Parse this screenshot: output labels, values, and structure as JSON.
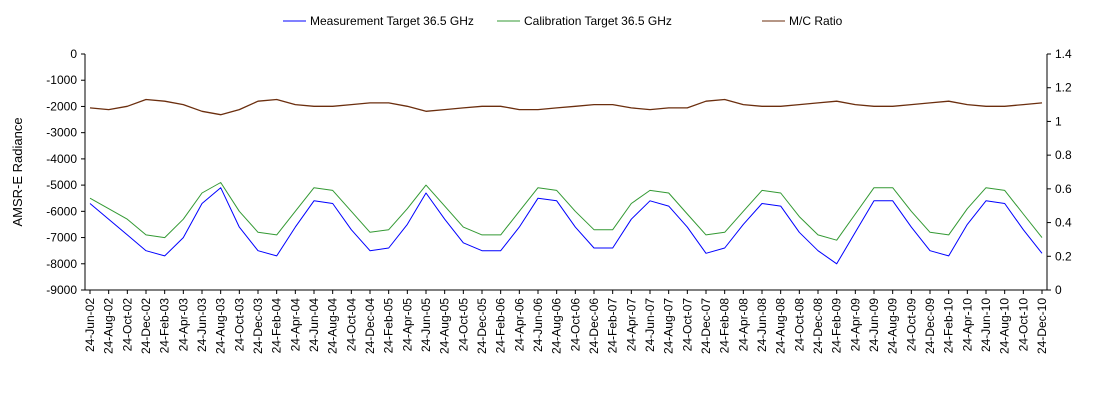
{
  "chart_data": {
    "type": "line",
    "title": "",
    "xlabel": "",
    "ylabel": "AMSR-E Radiance",
    "y2label": "",
    "ylim": [
      -9000,
      0
    ],
    "y2lim": [
      0,
      1.4
    ],
    "y_ticks": [
      0,
      -1000,
      -2000,
      -3000,
      -4000,
      -5000,
      -6000,
      -7000,
      -8000,
      -9000
    ],
    "y2_ticks": [
      1.4,
      1.2,
      1,
      0.8,
      0.6,
      0.4,
      0.2,
      0
    ],
    "x_ticks": [
      "24-Jun-02",
      "24-Aug-02",
      "24-Oct-02",
      "24-Dec-02",
      "24-Feb-03",
      "24-Apr-03",
      "24-Jun-03",
      "24-Aug-03",
      "24-Oct-03",
      "24-Dec-03",
      "24-Feb-04",
      "24-Apr-04",
      "24-Jun-04",
      "24-Aug-04",
      "24-Oct-04",
      "24-Dec-04",
      "24-Feb-05",
      "24-Apr-05",
      "24-Jun-05",
      "24-Aug-05",
      "24-Oct-05",
      "24-Dec-05",
      "24-Feb-06",
      "24-Apr-06",
      "24-Jun-06",
      "24-Aug-06",
      "24-Oct-06",
      "24-Dec-06",
      "24-Feb-07",
      "24-Apr-07",
      "24-Jun-07",
      "24-Aug-07",
      "24-Oct-07",
      "24-Dec-07",
      "24-Feb-08",
      "24-Apr-08",
      "24-Jun-08",
      "24-Aug-08",
      "24-Oct-08",
      "24-Dec-08",
      "24-Feb-09",
      "24-Apr-09",
      "24-Jun-09",
      "24-Aug-09",
      "24-Oct-09",
      "24-Dec-09",
      "24-Feb-10",
      "24-Apr-10",
      "24-Jun-10",
      "24-Aug-10",
      "24-Oct-10",
      "24-Dec-10"
    ],
    "grid": false,
    "legend": "top",
    "series": [
      {
        "name": "Measurement Target 36.5 GHz",
        "color": "#0000ff",
        "axis": "left",
        "x": [
          "24-Jun-02",
          "24-Aug-02",
          "24-Oct-02",
          "24-Dec-02",
          "24-Feb-03",
          "24-Apr-03",
          "24-Jun-03",
          "24-Aug-03",
          "24-Oct-03",
          "24-Dec-03",
          "24-Feb-04",
          "24-Apr-04",
          "24-Jun-04",
          "24-Aug-04",
          "24-Oct-04",
          "24-Dec-04",
          "24-Feb-05",
          "24-Apr-05",
          "24-Jun-05",
          "24-Aug-05",
          "24-Oct-05",
          "24-Dec-05",
          "24-Feb-06",
          "24-Apr-06",
          "24-Jun-06",
          "24-Aug-06",
          "24-Oct-06",
          "24-Dec-06",
          "24-Feb-07",
          "24-Apr-07",
          "24-Jun-07",
          "24-Aug-07",
          "24-Oct-07",
          "24-Dec-07",
          "24-Feb-08",
          "24-Apr-08",
          "24-Jun-08",
          "24-Aug-08",
          "24-Oct-08",
          "24-Dec-08",
          "24-Feb-09",
          "24-Apr-09",
          "24-Jun-09",
          "24-Aug-09",
          "24-Oct-09",
          "24-Dec-09",
          "24-Feb-10",
          "24-Apr-10",
          "24-Jun-10",
          "24-Aug-10",
          "24-Oct-10",
          "24-Dec-10"
        ],
        "values": [
          -5700,
          -6300,
          -6900,
          -7500,
          -7700,
          -7000,
          -5700,
          -5100,
          -6600,
          -7500,
          -7700,
          -6600,
          -5600,
          -5700,
          -6700,
          -7500,
          -7400,
          -6500,
          -5300,
          -6300,
          -7200,
          -7500,
          -7500,
          -6600,
          -5500,
          -5600,
          -6600,
          -7400,
          -7400,
          -6300,
          -5600,
          -5800,
          -6600,
          -7600,
          -7400,
          -6500,
          -5700,
          -5800,
          -6800,
          -7500,
          -8000,
          -6800,
          -5600,
          -5600,
          -6600,
          -7500,
          -7700,
          -6500,
          -5600,
          -5700,
          -6700,
          -7600
        ]
      },
      {
        "name": "Calibration Target 36.5 GHz",
        "color": "#339933",
        "axis": "left",
        "x": [
          "24-Jun-02",
          "24-Aug-02",
          "24-Oct-02",
          "24-Dec-02",
          "24-Feb-03",
          "24-Apr-03",
          "24-Jun-03",
          "24-Aug-03",
          "24-Oct-03",
          "24-Dec-03",
          "24-Feb-04",
          "24-Apr-04",
          "24-Jun-04",
          "24-Aug-04",
          "24-Oct-04",
          "24-Dec-04",
          "24-Feb-05",
          "24-Apr-05",
          "24-Jun-05",
          "24-Aug-05",
          "24-Oct-05",
          "24-Dec-05",
          "24-Feb-06",
          "24-Apr-06",
          "24-Jun-06",
          "24-Aug-06",
          "24-Oct-06",
          "24-Dec-06",
          "24-Feb-07",
          "24-Apr-07",
          "24-Jun-07",
          "24-Aug-07",
          "24-Oct-07",
          "24-Dec-07",
          "24-Feb-08",
          "24-Apr-08",
          "24-Jun-08",
          "24-Aug-08",
          "24-Oct-08",
          "24-Dec-08",
          "24-Feb-09",
          "24-Apr-09",
          "24-Jun-09",
          "24-Aug-09",
          "24-Oct-09",
          "24-Dec-09",
          "24-Feb-10",
          "24-Apr-10",
          "24-Jun-10",
          "24-Aug-10",
          "24-Oct-10",
          "24-Dec-10"
        ],
        "values": [
          -5500,
          -5900,
          -6300,
          -6900,
          -7000,
          -6300,
          -5300,
          -4900,
          -6000,
          -6800,
          -6900,
          -6000,
          -5100,
          -5200,
          -6000,
          -6800,
          -6700,
          -5900,
          -5000,
          -5800,
          -6600,
          -6900,
          -6900,
          -6000,
          -5100,
          -5200,
          -6000,
          -6700,
          -6700,
          -5700,
          -5200,
          -5300,
          -6100,
          -6900,
          -6800,
          -6000,
          -5200,
          -5300,
          -6200,
          -6900,
          -7100,
          -6100,
          -5100,
          -5100,
          -6000,
          -6800,
          -6900,
          -5900,
          -5100,
          -5200,
          -6100,
          -7000
        ]
      },
      {
        "name": "M/C Ratio",
        "color": "#6b2e0e",
        "axis": "right",
        "x": [
          "24-Jun-02",
          "24-Aug-02",
          "24-Oct-02",
          "24-Dec-02",
          "24-Feb-03",
          "24-Apr-03",
          "24-Jun-03",
          "24-Aug-03",
          "24-Oct-03",
          "24-Dec-03",
          "24-Feb-04",
          "24-Apr-04",
          "24-Jun-04",
          "24-Aug-04",
          "24-Oct-04",
          "24-Dec-04",
          "24-Feb-05",
          "24-Apr-05",
          "24-Jun-05",
          "24-Aug-05",
          "24-Oct-05",
          "24-Dec-05",
          "24-Feb-06",
          "24-Apr-06",
          "24-Jun-06",
          "24-Aug-06",
          "24-Oct-06",
          "24-Dec-06",
          "24-Feb-07",
          "24-Apr-07",
          "24-Jun-07",
          "24-Aug-07",
          "24-Oct-07",
          "24-Dec-07",
          "24-Feb-08",
          "24-Apr-08",
          "24-Jun-08",
          "24-Aug-08",
          "24-Oct-08",
          "24-Dec-08",
          "24-Feb-09",
          "24-Apr-09",
          "24-Jun-09",
          "24-Aug-09",
          "24-Oct-09",
          "24-Dec-09",
          "24-Feb-10",
          "24-Apr-10",
          "24-Jun-10",
          "24-Aug-10",
          "24-Oct-10",
          "24-Dec-10"
        ],
        "values": [
          1.08,
          1.07,
          1.09,
          1.13,
          1.12,
          1.1,
          1.06,
          1.04,
          1.07,
          1.12,
          1.13,
          1.1,
          1.09,
          1.09,
          1.1,
          1.11,
          1.11,
          1.09,
          1.06,
          1.07,
          1.08,
          1.09,
          1.09,
          1.07,
          1.07,
          1.08,
          1.09,
          1.1,
          1.1,
          1.08,
          1.07,
          1.08,
          1.08,
          1.12,
          1.13,
          1.1,
          1.09,
          1.09,
          1.1,
          1.11,
          1.12,
          1.1,
          1.09,
          1.09,
          1.1,
          1.11,
          1.12,
          1.1,
          1.09,
          1.09,
          1.1,
          1.11
        ]
      }
    ]
  }
}
